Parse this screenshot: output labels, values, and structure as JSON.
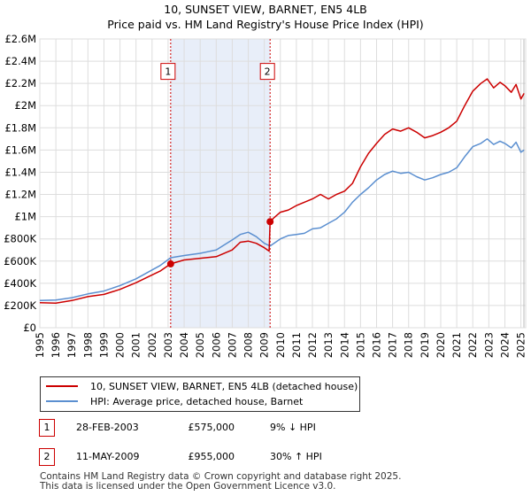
{
  "title": "10, SUNSET VIEW, BARNET, EN5 4LB",
  "subtitle": "Price paid vs. HM Land Registry's House Price Index (HPI)",
  "colors": {
    "property": "#cc0000",
    "hpi": "#5b8fd0",
    "shade": "#e8eef9",
    "grid": "#dddddd",
    "marker_border": "#cc0000"
  },
  "chart_data": {
    "type": "line",
    "title": "10, SUNSET VIEW, BARNET, EN5 4LB",
    "subtitle": "Price paid vs. HM Land Registry's House Price Index (HPI)",
    "xlim": [
      1995,
      2025.3
    ],
    "ylim": [
      0,
      2600000
    ],
    "x_ticks": [
      1995,
      1996,
      1997,
      1998,
      1999,
      2000,
      2001,
      2002,
      2003,
      2004,
      2005,
      2006,
      2007,
      2008,
      2009,
      2010,
      2011,
      2012,
      2013,
      2014,
      2015,
      2016,
      2017,
      2018,
      2019,
      2020,
      2021,
      2022,
      2023,
      2024,
      2025
    ],
    "y_ticks": [
      {
        "value": 0,
        "label": "£0"
      },
      {
        "value": 200000,
        "label": "£200K"
      },
      {
        "value": 400000,
        "label": "£400K"
      },
      {
        "value": 600000,
        "label": "£600K"
      },
      {
        "value": 800000,
        "label": "£800K"
      },
      {
        "value": 1000000,
        "label": "£1M"
      },
      {
        "value": 1200000,
        "label": "£1.2M"
      },
      {
        "value": 1400000,
        "label": "£1.4M"
      },
      {
        "value": 1600000,
        "label": "£1.6M"
      },
      {
        "value": 1800000,
        "label": "£1.8M"
      },
      {
        "value": 2000000,
        "label": "£2M"
      },
      {
        "value": 2200000,
        "label": "£2.2M"
      },
      {
        "value": 2400000,
        "label": "£2.4M"
      },
      {
        "value": 2600000,
        "label": "£2.6M"
      }
    ],
    "grid": true,
    "shaded_range": [
      2003.16,
      2009.36
    ],
    "series": [
      {
        "name": "10, SUNSET VIEW, BARNET, EN5 4LB (detached house)",
        "color": "#cc0000",
        "points": [
          [
            1995.0,
            225000
          ],
          [
            1996.0,
            222000
          ],
          [
            1997.0,
            245000
          ],
          [
            1998.0,
            280000
          ],
          [
            1999.0,
            300000
          ],
          [
            2000.0,
            345000
          ],
          [
            2001.0,
            405000
          ],
          [
            2002.0,
            475000
          ],
          [
            2002.5,
            510000
          ],
          [
            2003.16,
            575000
          ],
          [
            2004.0,
            610000
          ],
          [
            2005.0,
            625000
          ],
          [
            2006.0,
            640000
          ],
          [
            2007.0,
            700000
          ],
          [
            2007.5,
            770000
          ],
          [
            2008.0,
            780000
          ],
          [
            2008.5,
            760000
          ],
          [
            2009.0,
            720000
          ],
          [
            2009.3,
            690000
          ],
          [
            2009.36,
            955000
          ],
          [
            2009.6,
            990000
          ],
          [
            2010.0,
            1040000
          ],
          [
            2010.5,
            1060000
          ],
          [
            2011.0,
            1100000
          ],
          [
            2011.5,
            1130000
          ],
          [
            2012.0,
            1160000
          ],
          [
            2012.5,
            1200000
          ],
          [
            2013.0,
            1160000
          ],
          [
            2013.5,
            1200000
          ],
          [
            2014.0,
            1230000
          ],
          [
            2014.5,
            1300000
          ],
          [
            2015.0,
            1450000
          ],
          [
            2015.5,
            1570000
          ],
          [
            2016.0,
            1660000
          ],
          [
            2016.5,
            1740000
          ],
          [
            2017.0,
            1790000
          ],
          [
            2017.5,
            1770000
          ],
          [
            2018.0,
            1800000
          ],
          [
            2018.5,
            1760000
          ],
          [
            2019.0,
            1710000
          ],
          [
            2019.5,
            1730000
          ],
          [
            2020.0,
            1760000
          ],
          [
            2020.5,
            1800000
          ],
          [
            2021.0,
            1860000
          ],
          [
            2021.5,
            2000000
          ],
          [
            2022.0,
            2130000
          ],
          [
            2022.5,
            2200000
          ],
          [
            2022.9,
            2240000
          ],
          [
            2023.3,
            2160000
          ],
          [
            2023.7,
            2210000
          ],
          [
            2024.0,
            2180000
          ],
          [
            2024.4,
            2120000
          ],
          [
            2024.7,
            2190000
          ],
          [
            2025.0,
            2060000
          ],
          [
            2025.2,
            2110000
          ]
        ]
      },
      {
        "name": "HPI: Average price, detached house, Barnet",
        "color": "#5b8fd0",
        "points": [
          [
            1995.0,
            245000
          ],
          [
            1996.0,
            250000
          ],
          [
            1997.0,
            270000
          ],
          [
            1998.0,
            305000
          ],
          [
            1999.0,
            330000
          ],
          [
            2000.0,
            380000
          ],
          [
            2001.0,
            440000
          ],
          [
            2002.0,
            520000
          ],
          [
            2002.5,
            560000
          ],
          [
            2003.16,
            630000
          ],
          [
            2004.0,
            650000
          ],
          [
            2005.0,
            670000
          ],
          [
            2006.0,
            700000
          ],
          [
            2007.0,
            790000
          ],
          [
            2007.5,
            840000
          ],
          [
            2008.0,
            860000
          ],
          [
            2008.5,
            820000
          ],
          [
            2009.0,
            760000
          ],
          [
            2009.36,
            735000
          ],
          [
            2010.0,
            800000
          ],
          [
            2010.5,
            830000
          ],
          [
            2011.0,
            840000
          ],
          [
            2011.5,
            850000
          ],
          [
            2012.0,
            890000
          ],
          [
            2012.5,
            900000
          ],
          [
            2013.0,
            940000
          ],
          [
            2013.5,
            980000
          ],
          [
            2014.0,
            1040000
          ],
          [
            2014.5,
            1130000
          ],
          [
            2015.0,
            1200000
          ],
          [
            2015.5,
            1260000
          ],
          [
            2016.0,
            1330000
          ],
          [
            2016.5,
            1380000
          ],
          [
            2017.0,
            1410000
          ],
          [
            2017.5,
            1390000
          ],
          [
            2018.0,
            1400000
          ],
          [
            2018.5,
            1360000
          ],
          [
            2019.0,
            1330000
          ],
          [
            2019.5,
            1350000
          ],
          [
            2020.0,
            1380000
          ],
          [
            2020.5,
            1400000
          ],
          [
            2021.0,
            1440000
          ],
          [
            2021.5,
            1540000
          ],
          [
            2022.0,
            1630000
          ],
          [
            2022.5,
            1660000
          ],
          [
            2022.9,
            1700000
          ],
          [
            2023.3,
            1650000
          ],
          [
            2023.7,
            1680000
          ],
          [
            2024.0,
            1660000
          ],
          [
            2024.4,
            1620000
          ],
          [
            2024.7,
            1670000
          ],
          [
            2025.0,
            1580000
          ],
          [
            2025.2,
            1600000
          ]
        ]
      }
    ],
    "markers": [
      {
        "label": "1",
        "x": 2003.16,
        "y": 575000,
        "box_y": 2300000
      },
      {
        "label": "2",
        "x": 2009.36,
        "y": 955000,
        "box_y": 2300000
      }
    ]
  },
  "legend": [
    {
      "label": "10, SUNSET VIEW, BARNET, EN5 4LB (detached house)",
      "color": "#cc0000"
    },
    {
      "label": "HPI: Average price, detached house, Barnet",
      "color": "#5b8fd0"
    }
  ],
  "transactions": [
    {
      "badge": "1",
      "date": "28-FEB-2003",
      "price": "£575,000",
      "hpi": "9% ↓ HPI"
    },
    {
      "badge": "2",
      "date": "11-MAY-2009",
      "price": "£955,000",
      "hpi": "30% ↑ HPI"
    }
  ],
  "footer_line1": "Contains HM Land Registry data © Crown copyright and database right 2025.",
  "footer_line2": "This data is licensed under the Open Government Licence v3.0."
}
